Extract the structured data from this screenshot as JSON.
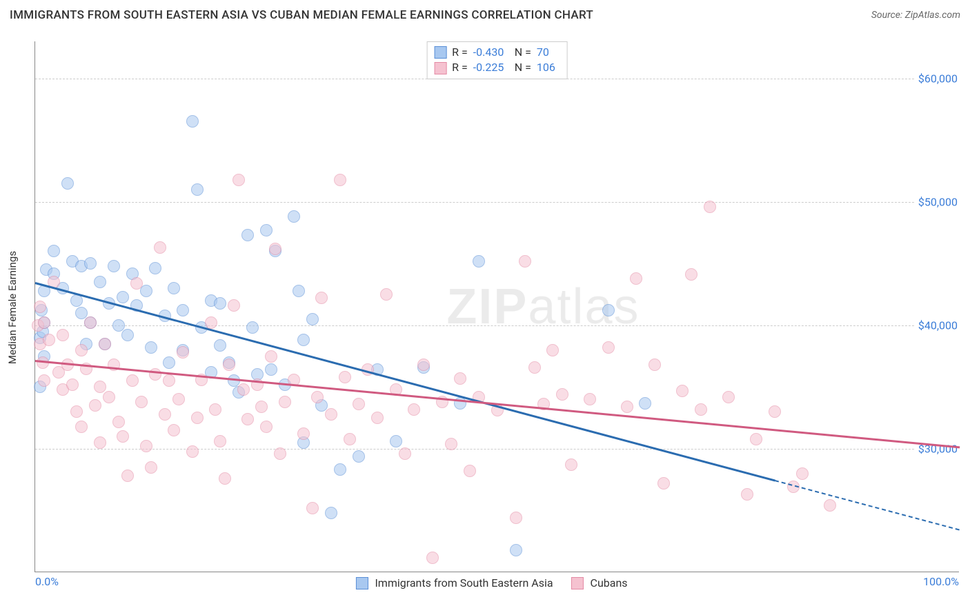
{
  "title": "IMMIGRANTS FROM SOUTH EASTERN ASIA VS CUBAN MEDIAN FEMALE EARNINGS CORRELATION CHART",
  "source_label": "Source: ZipAtlas.com",
  "watermark": "ZIPatlas",
  "y_axis_label": "Median Female Earnings",
  "chart": {
    "type": "scatter",
    "xlim": [
      0,
      100
    ],
    "ylim": [
      20000,
      63000
    ],
    "x_ticks": [
      {
        "pos": 0,
        "label": "0.0%"
      },
      {
        "pos": 100,
        "label": "100.0%"
      }
    ],
    "y_ticks": [
      {
        "pos": 30000,
        "label": "$30,000"
      },
      {
        "pos": 40000,
        "label": "$40,000"
      },
      {
        "pos": 50000,
        "label": "$50,000"
      },
      {
        "pos": 60000,
        "label": "$60,000"
      }
    ],
    "background_color": "#ffffff",
    "grid_color": "#cccccc",
    "marker_radius": 9,
    "marker_opacity": 0.55,
    "series": [
      {
        "name": "Immigrants from South Eastern Asia",
        "color_fill": "#a8c8f0",
        "color_stroke": "#5a8fd6",
        "line_color": "#2b6cb0",
        "r_value": "-0.430",
        "n_value": "70",
        "trend": {
          "x1": 0,
          "y1": 43500,
          "x2": 80,
          "y2": 27500,
          "dash_to_x": 100,
          "dash_to_y": 23500
        },
        "points": [
          [
            0.5,
            35000
          ],
          [
            0.5,
            39000
          ],
          [
            0.7,
            41200
          ],
          [
            0.8,
            39500
          ],
          [
            1,
            42800
          ],
          [
            1,
            40200
          ],
          [
            1,
            37500
          ],
          [
            1.2,
            44500
          ],
          [
            2,
            46000
          ],
          [
            2,
            44200
          ],
          [
            3,
            43000
          ],
          [
            3.5,
            51500
          ],
          [
            4,
            45200
          ],
          [
            4.5,
            42000
          ],
          [
            5,
            44800
          ],
          [
            5,
            41000
          ],
          [
            5.5,
            38500
          ],
          [
            6,
            45000
          ],
          [
            6,
            40200
          ],
          [
            7,
            43500
          ],
          [
            7.5,
            38500
          ],
          [
            8,
            41800
          ],
          [
            8.5,
            44800
          ],
          [
            9,
            40000
          ],
          [
            9.5,
            42300
          ],
          [
            10,
            39200
          ],
          [
            10.5,
            44200
          ],
          [
            11,
            41600
          ],
          [
            12,
            42800
          ],
          [
            12.5,
            38200
          ],
          [
            13,
            44600
          ],
          [
            14,
            40800
          ],
          [
            14.5,
            37000
          ],
          [
            15,
            43000
          ],
          [
            16,
            41200
          ],
          [
            16,
            38000
          ],
          [
            17,
            56500
          ],
          [
            17.5,
            51000
          ],
          [
            18,
            39800
          ],
          [
            19,
            36200
          ],
          [
            19,
            42000
          ],
          [
            20,
            41800
          ],
          [
            20,
            38400
          ],
          [
            21,
            37000
          ],
          [
            21.5,
            35500
          ],
          [
            22,
            34600
          ],
          [
            23,
            47300
          ],
          [
            23.5,
            39800
          ],
          [
            24,
            36000
          ],
          [
            25,
            47700
          ],
          [
            25.5,
            36400
          ],
          [
            26,
            46000
          ],
          [
            27,
            35200
          ],
          [
            28,
            48800
          ],
          [
            28.5,
            42800
          ],
          [
            29,
            30500
          ],
          [
            29,
            38800
          ],
          [
            30,
            40500
          ],
          [
            31,
            33500
          ],
          [
            32,
            24800
          ],
          [
            33,
            28300
          ],
          [
            35,
            29400
          ],
          [
            37,
            36400
          ],
          [
            39,
            30600
          ],
          [
            42,
            36600
          ],
          [
            46,
            33700
          ],
          [
            48,
            45200
          ],
          [
            52,
            21800
          ],
          [
            62,
            41200
          ],
          [
            66,
            33700
          ]
        ]
      },
      {
        "name": "Cubans",
        "color_fill": "#f5c2d0",
        "color_stroke": "#e48ba5",
        "line_color": "#d05a80",
        "r_value": "-0.225",
        "n_value": "106",
        "trend": {
          "x1": 0,
          "y1": 37200,
          "x2": 100,
          "y2": 30200
        },
        "points": [
          [
            0.3,
            40000
          ],
          [
            0.5,
            41500
          ],
          [
            0.5,
            38500
          ],
          [
            0.8,
            37000
          ],
          [
            1,
            35500
          ],
          [
            1,
            40200
          ],
          [
            1.5,
            38800
          ],
          [
            2,
            43500
          ],
          [
            2.5,
            36200
          ],
          [
            3,
            34800
          ],
          [
            3,
            39200
          ],
          [
            3.5,
            36800
          ],
          [
            4,
            35200
          ],
          [
            4.5,
            33000
          ],
          [
            5,
            38000
          ],
          [
            5,
            31800
          ],
          [
            5.5,
            36500
          ],
          [
            6,
            40200
          ],
          [
            6.5,
            33500
          ],
          [
            7,
            35000
          ],
          [
            7,
            30500
          ],
          [
            7.5,
            38500
          ],
          [
            8,
            34200
          ],
          [
            8.5,
            36800
          ],
          [
            9,
            32200
          ],
          [
            9.5,
            31000
          ],
          [
            10,
            27800
          ],
          [
            10.5,
            35500
          ],
          [
            11,
            43400
          ],
          [
            11.5,
            33800
          ],
          [
            12,
            30200
          ],
          [
            12.5,
            28500
          ],
          [
            13,
            36000
          ],
          [
            13.5,
            46300
          ],
          [
            14,
            32800
          ],
          [
            14.5,
            35500
          ],
          [
            15,
            31500
          ],
          [
            15.5,
            34000
          ],
          [
            16,
            37800
          ],
          [
            17,
            29800
          ],
          [
            17.5,
            32500
          ],
          [
            18,
            35600
          ],
          [
            19,
            40200
          ],
          [
            19.5,
            33200
          ],
          [
            20,
            30600
          ],
          [
            20.5,
            27600
          ],
          [
            21,
            36800
          ],
          [
            21.5,
            41600
          ],
          [
            22,
            51800
          ],
          [
            22.5,
            34800
          ],
          [
            23,
            32400
          ],
          [
            24,
            35200
          ],
          [
            24.5,
            33400
          ],
          [
            25,
            31800
          ],
          [
            25.5,
            37500
          ],
          [
            26,
            46200
          ],
          [
            26.5,
            29600
          ],
          [
            27,
            33800
          ],
          [
            28,
            35600
          ],
          [
            29,
            31200
          ],
          [
            30,
            25200
          ],
          [
            30.5,
            34200
          ],
          [
            31,
            42200
          ],
          [
            32,
            32800
          ],
          [
            33,
            51800
          ],
          [
            33.5,
            35800
          ],
          [
            34,
            30800
          ],
          [
            35,
            33600
          ],
          [
            36,
            36400
          ],
          [
            37,
            32500
          ],
          [
            38,
            42500
          ],
          [
            39,
            34800
          ],
          [
            40,
            29600
          ],
          [
            41,
            33200
          ],
          [
            42,
            36800
          ],
          [
            43,
            21200
          ],
          [
            44,
            33800
          ],
          [
            45,
            30400
          ],
          [
            46,
            35700
          ],
          [
            47,
            28200
          ],
          [
            48,
            34200
          ],
          [
            50,
            33100
          ],
          [
            52,
            24400
          ],
          [
            53,
            45200
          ],
          [
            54,
            36600
          ],
          [
            55,
            33600
          ],
          [
            56,
            38000
          ],
          [
            57,
            34400
          ],
          [
            58,
            28700
          ],
          [
            60,
            34000
          ],
          [
            62,
            38200
          ],
          [
            64,
            33400
          ],
          [
            65,
            43800
          ],
          [
            67,
            36800
          ],
          [
            68,
            27200
          ],
          [
            70,
            34700
          ],
          [
            71,
            44100
          ],
          [
            72,
            33200
          ],
          [
            73,
            49600
          ],
          [
            75,
            34200
          ],
          [
            77,
            26300
          ],
          [
            78,
            30800
          ],
          [
            80,
            33000
          ],
          [
            82,
            26900
          ],
          [
            83,
            28000
          ],
          [
            86,
            25400
          ]
        ]
      }
    ]
  }
}
